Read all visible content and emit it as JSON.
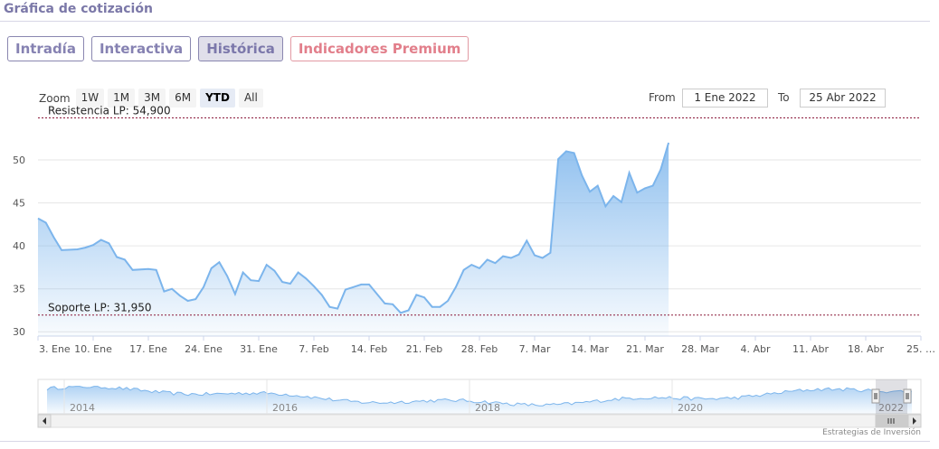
{
  "header": {
    "title": "Gráfica de cotización"
  },
  "tabs": [
    {
      "label": "Intradía"
    },
    {
      "label": "Interactiva"
    },
    {
      "label": "Histórica"
    },
    {
      "label": "Indicadores Premium"
    }
  ],
  "range_selector": {
    "zoom_label": "Zoom",
    "buttons": [
      "1W",
      "1M",
      "3M",
      "6M",
      "YTD",
      "All"
    ],
    "selected": "YTD",
    "from_label": "From",
    "from_value": "1 Ene 2022",
    "to_label": "To",
    "to_value": "25 Abr 2022"
  },
  "credit": "Estrategias de Inversión",
  "colors": {
    "series": "#7cb5ec",
    "level_line": "#8b1a3a",
    "tab_text": "#8682b2",
    "premium": "#e27f8b"
  },
  "chart_data": {
    "type": "area",
    "ylim": [
      29.5,
      56
    ],
    "y_ticks": [
      30,
      35,
      40,
      45,
      50
    ],
    "x_tick_labels": [
      "3. Ene",
      "10. Ene",
      "17. Ene",
      "24. Ene",
      "31. Ene",
      "7. Feb",
      "14. Feb",
      "21. Feb",
      "28. Feb",
      "7. Mar",
      "14. Mar",
      "21. Mar",
      "28. Mar",
      "4. Abr",
      "11. Abr",
      "18. Abr",
      "25. …"
    ],
    "x_tick_days": [
      2,
      9,
      16,
      23,
      30,
      37,
      44,
      51,
      58,
      65,
      72,
      79,
      86,
      93,
      100,
      107,
      114
    ],
    "x_range_days": [
      2,
      114
    ],
    "plot_lines": [
      {
        "label": "Resistencia LP: 54,900",
        "value": 54.9
      },
      {
        "label": "Soporte LP: 31,950",
        "value": 31.95
      }
    ],
    "series": [
      {
        "values": [
          [
            2,
            43.2
          ],
          [
            3,
            42.7
          ],
          [
            4,
            41.0
          ],
          [
            5,
            39.5
          ],
          [
            7,
            39.6
          ],
          [
            8,
            39.8
          ],
          [
            9,
            40.1
          ],
          [
            10,
            40.7
          ],
          [
            11,
            40.3
          ],
          [
            12,
            38.7
          ],
          [
            13,
            38.4
          ],
          [
            14,
            37.2
          ],
          [
            16,
            37.3
          ],
          [
            17,
            37.2
          ],
          [
            18,
            34.7
          ],
          [
            19,
            35.0
          ],
          [
            20,
            34.2
          ],
          [
            21,
            33.6
          ],
          [
            22,
            33.8
          ],
          [
            23,
            35.2
          ],
          [
            24,
            37.4
          ],
          [
            25,
            38.1
          ],
          [
            26,
            36.5
          ],
          [
            27,
            34.4
          ],
          [
            28,
            36.9
          ],
          [
            29,
            36.0
          ],
          [
            30,
            35.9
          ],
          [
            31,
            37.8
          ],
          [
            32,
            37.1
          ],
          [
            33,
            35.8
          ],
          [
            34,
            35.6
          ],
          [
            35,
            36.9
          ],
          [
            36,
            36.2
          ],
          [
            37,
            35.3
          ],
          [
            38,
            34.3
          ],
          [
            39,
            32.9
          ],
          [
            40,
            32.7
          ],
          [
            41,
            34.9
          ],
          [
            42,
            35.2
          ],
          [
            43,
            35.5
          ],
          [
            44,
            35.5
          ],
          [
            45,
            34.4
          ],
          [
            46,
            33.3
          ],
          [
            47,
            33.2
          ],
          [
            48,
            32.2
          ],
          [
            49,
            32.5
          ],
          [
            50,
            34.3
          ],
          [
            51,
            34.0
          ],
          [
            52,
            32.9
          ],
          [
            53,
            32.9
          ],
          [
            54,
            33.6
          ],
          [
            55,
            35.2
          ],
          [
            56,
            37.2
          ],
          [
            57,
            37.8
          ],
          [
            58,
            37.4
          ],
          [
            59,
            38.4
          ],
          [
            60,
            38.0
          ],
          [
            61,
            38.8
          ],
          [
            62,
            38.6
          ],
          [
            63,
            39.0
          ],
          [
            64,
            40.6
          ],
          [
            65,
            38.9
          ],
          [
            66,
            38.6
          ],
          [
            67,
            39.2
          ],
          [
            68,
            50.1
          ],
          [
            69,
            51.0
          ],
          [
            70,
            50.8
          ],
          [
            71,
            48.2
          ],
          [
            72,
            46.3
          ],
          [
            73,
            47.0
          ],
          [
            74,
            44.6
          ],
          [
            75,
            45.8
          ],
          [
            76,
            45.1
          ],
          [
            77,
            48.5
          ],
          [
            78,
            46.2
          ],
          [
            79,
            46.7
          ],
          [
            80,
            47.0
          ],
          [
            81,
            48.9
          ],
          [
            82,
            52.0
          ]
        ]
      }
    ],
    "navigator": {
      "year_labels": [
        "2014",
        "2016",
        "2018",
        "2020",
        "2022"
      ]
    }
  }
}
